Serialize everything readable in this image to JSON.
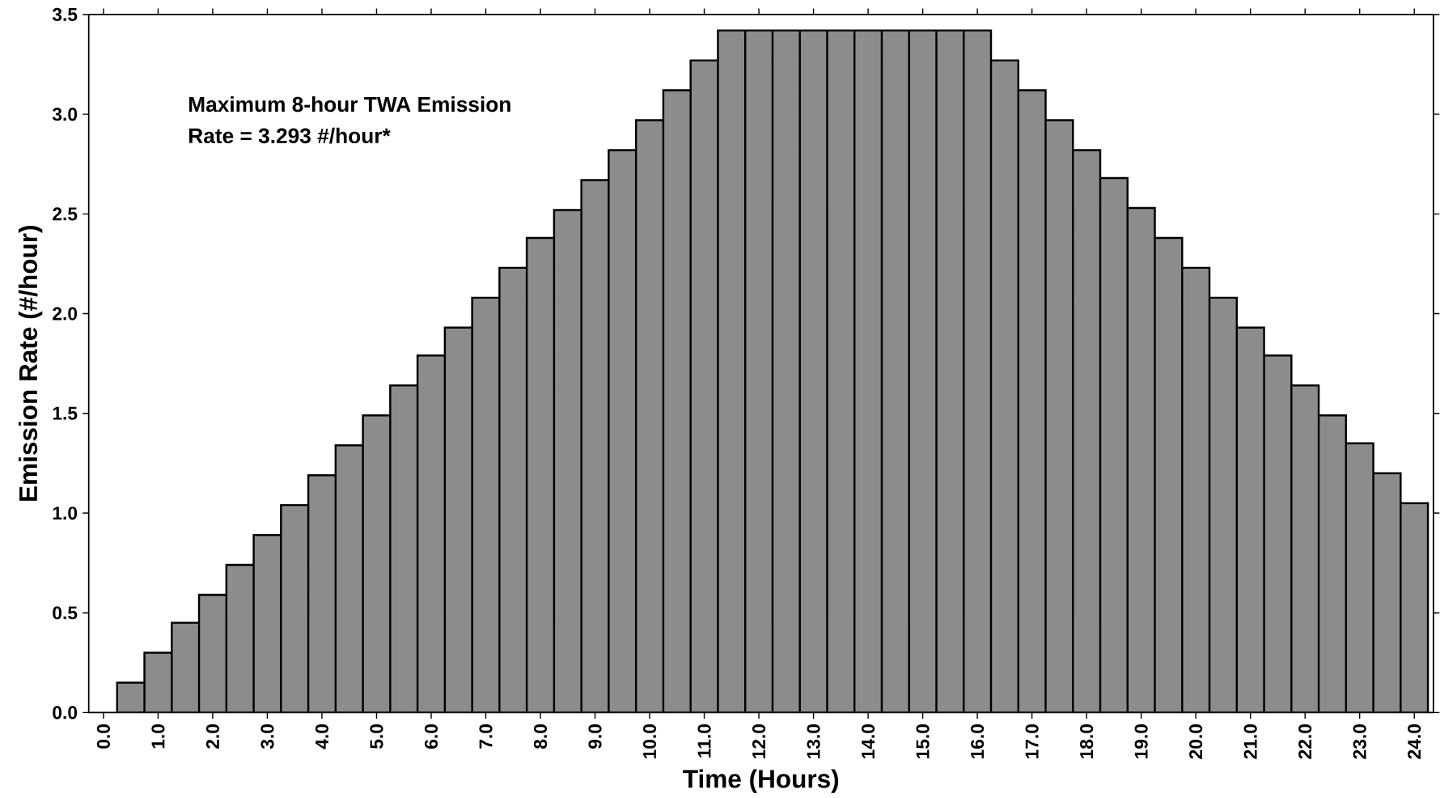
{
  "chart_data": {
    "type": "bar",
    "xlabel": "Time (Hours)",
    "ylabel": "Emission Rate (#/hour)",
    "annotations": [
      "Maximum 8-hour TWA Emission",
      "Rate =  3.293 #/hour*"
    ],
    "x": [
      0.5,
      1.0,
      1.5,
      2.0,
      2.5,
      3.0,
      3.5,
      4.0,
      4.5,
      5.0,
      5.5,
      6.0,
      6.5,
      7.0,
      7.5,
      8.0,
      8.5,
      9.0,
      9.5,
      10.0,
      10.5,
      11.0,
      11.5,
      12.0,
      12.5,
      13.0,
      13.5,
      14.0,
      14.5,
      15.0,
      15.5,
      16.0,
      16.5,
      17.0,
      17.5,
      18.0,
      18.5,
      19.0,
      19.5,
      20.0,
      20.5,
      21.0,
      21.5,
      22.0,
      22.5,
      23.0,
      23.5,
      24.0
    ],
    "values": [
      0.15,
      0.3,
      0.45,
      0.59,
      0.74,
      0.89,
      1.04,
      1.19,
      1.34,
      1.49,
      1.64,
      1.79,
      1.93,
      2.08,
      2.23,
      2.38,
      2.52,
      2.67,
      2.82,
      2.97,
      3.12,
      3.27,
      3.42,
      3.42,
      3.42,
      3.42,
      3.42,
      3.42,
      3.42,
      3.42,
      3.42,
      3.42,
      3.27,
      3.12,
      2.97,
      2.82,
      2.68,
      2.53,
      2.38,
      2.23,
      2.08,
      1.93,
      1.79,
      1.64,
      1.49,
      1.35,
      1.2,
      1.05
    ],
    "color": "#8c8c8c",
    "xlim": [
      -0.27,
      24.35
    ],
    "ylim": [
      0,
      3.5
    ],
    "xticks": [
      {
        "value": 0,
        "label": "0.0"
      },
      {
        "value": 1,
        "label": "1.0"
      },
      {
        "value": 2,
        "label": "2.0"
      },
      {
        "value": 3,
        "label": "3.0"
      },
      {
        "value": 4,
        "label": "4.0"
      },
      {
        "value": 5,
        "label": "5.0"
      },
      {
        "value": 6,
        "label": "6.0"
      },
      {
        "value": 7,
        "label": "7.0"
      },
      {
        "value": 8,
        "label": "8.0"
      },
      {
        "value": 9,
        "label": "9.0"
      },
      {
        "value": 10,
        "label": "10.0"
      },
      {
        "value": 11,
        "label": "11.0"
      },
      {
        "value": 12,
        "label": "12.0"
      },
      {
        "value": 13,
        "label": "13.0"
      },
      {
        "value": 14,
        "label": "14.0"
      },
      {
        "value": 15,
        "label": "15.0"
      },
      {
        "value": 16,
        "label": "16.0"
      },
      {
        "value": 17,
        "label": "17.0"
      },
      {
        "value": 18,
        "label": "18.0"
      },
      {
        "value": 19,
        "label": "19.0"
      },
      {
        "value": 20,
        "label": "20.0"
      },
      {
        "value": 21,
        "label": "21.0"
      },
      {
        "value": 22,
        "label": "22.0"
      },
      {
        "value": 23,
        "label": "23.0"
      },
      {
        "value": 24,
        "label": "24.0"
      }
    ],
    "yticks": [
      {
        "value": 0,
        "label": "0.0"
      },
      {
        "value": 0.5,
        "label": "0.5"
      },
      {
        "value": 1,
        "label": "1.0"
      },
      {
        "value": 1.5,
        "label": "1.5"
      },
      {
        "value": 2,
        "label": "2.0"
      },
      {
        "value": 2.5,
        "label": "2.5"
      },
      {
        "value": 3,
        "label": "3.0"
      },
      {
        "value": 3.5,
        "label": "3.5"
      }
    ]
  }
}
